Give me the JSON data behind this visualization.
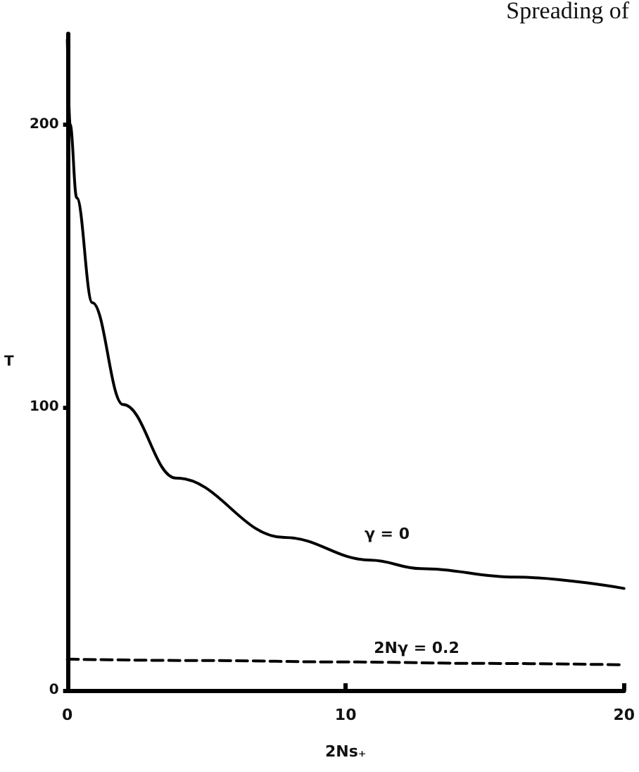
{
  "chart_data": {
    "type": "line",
    "xlabel": "2Ns₊",
    "ylabel": "T",
    "annotations": [
      "Spreading of",
      "γ = 0",
      "2Nγ = 0.2"
    ],
    "series": [
      {
        "color": "#000000",
        "line_style": "solid",
        "x": [
          0,
          0.1,
          0.34,
          0.9,
          2,
          3.9,
          7.8,
          10.9,
          12.7,
          16.1,
          20
        ],
        "values": [
          230,
          200,
          174,
          137,
          101,
          75,
          54,
          46,
          43,
          40,
          36
        ]
      },
      {
        "color": "#000000",
        "line_style": "dashed",
        "x": [
          0,
          5,
          10,
          15,
          20
        ],
        "values": [
          11,
          10.5,
          10,
          9.5,
          9
        ]
      }
    ],
    "xlim": [
      0,
      20
    ],
    "xticks": [
      0,
      10,
      20
    ],
    "ylim": [
      0,
      232
    ],
    "yticks": [
      0,
      100,
      200
    ],
    "grid": false,
    "marker": "none"
  }
}
